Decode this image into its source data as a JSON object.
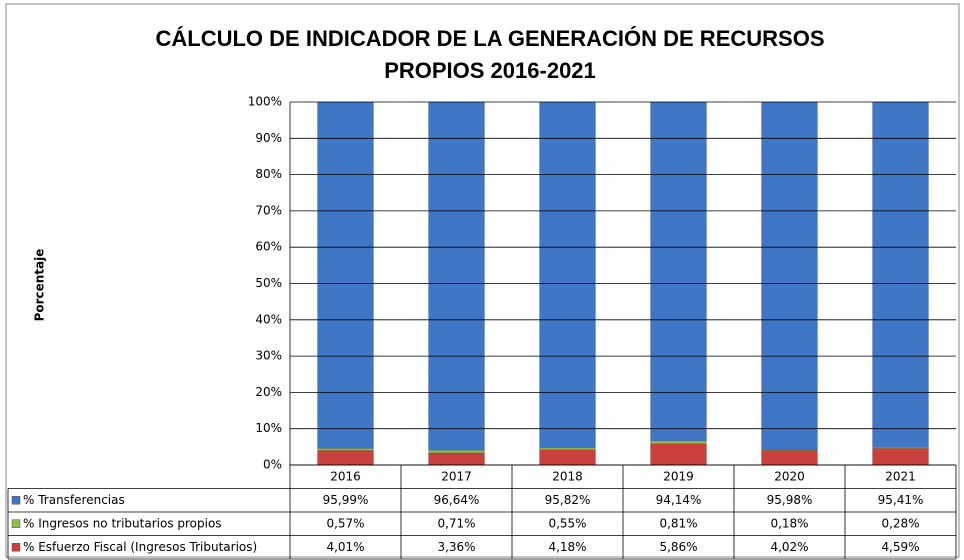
{
  "chart_data": {
    "type": "stacked_bar",
    "title": "CÁLCULO DE INDICADOR DE LA GENERACIÓN DE RECURSOS",
    "subtitle": "PROPIOS 2016-2021",
    "y_label": "Porcentaje",
    "categories": [
      "2016",
      "2017",
      "2018",
      "2019",
      "2020",
      "2021"
    ],
    "series": [
      {
        "name": "% Transferencias",
        "color": "#3f76c6",
        "values": [
          95.99,
          96.64,
          95.82,
          94.14,
          95.98,
          95.41
        ],
        "value_labels": [
          "95,99%",
          "96,64%",
          "95,82%",
          "94,14%",
          "95,98%",
          "95,41%"
        ]
      },
      {
        "name": "% Ingresos no tributarios propios",
        "color": "#8fbc4a",
        "values": [
          0.57,
          0.71,
          0.55,
          0.81,
          0.18,
          0.28
        ],
        "value_labels": [
          "0,57%",
          "0,71%",
          "0,55%",
          "0,81%",
          "0,18%",
          "0,28%"
        ]
      },
      {
        "name": "% Esfuerzo Fiscal (Ingresos Tributarios)",
        "color": "#c9403c",
        "values": [
          4.01,
          3.36,
          4.18,
          5.86,
          4.02,
          4.59
        ],
        "value_labels": [
          "4,01%",
          "3,36%",
          "4,18%",
          "5,86%",
          "4,02%",
          "4,59%"
        ]
      }
    ],
    "ylim": [
      0,
      100
    ],
    "yticks": [
      {
        "value": 0,
        "label": "0%"
      },
      {
        "value": 10,
        "label": "10%"
      },
      {
        "value": 20,
        "label": "20%"
      },
      {
        "value": 30,
        "label": "30%"
      },
      {
        "value": 40,
        "label": "40%"
      },
      {
        "value": 50,
        "label": "50%"
      },
      {
        "value": 60,
        "label": "60%"
      },
      {
        "value": 70,
        "label": "70%"
      },
      {
        "value": 80,
        "label": "80%"
      },
      {
        "value": 90,
        "label": "90%"
      },
      {
        "value": 100,
        "label": "100%"
      }
    ],
    "grid": true
  }
}
